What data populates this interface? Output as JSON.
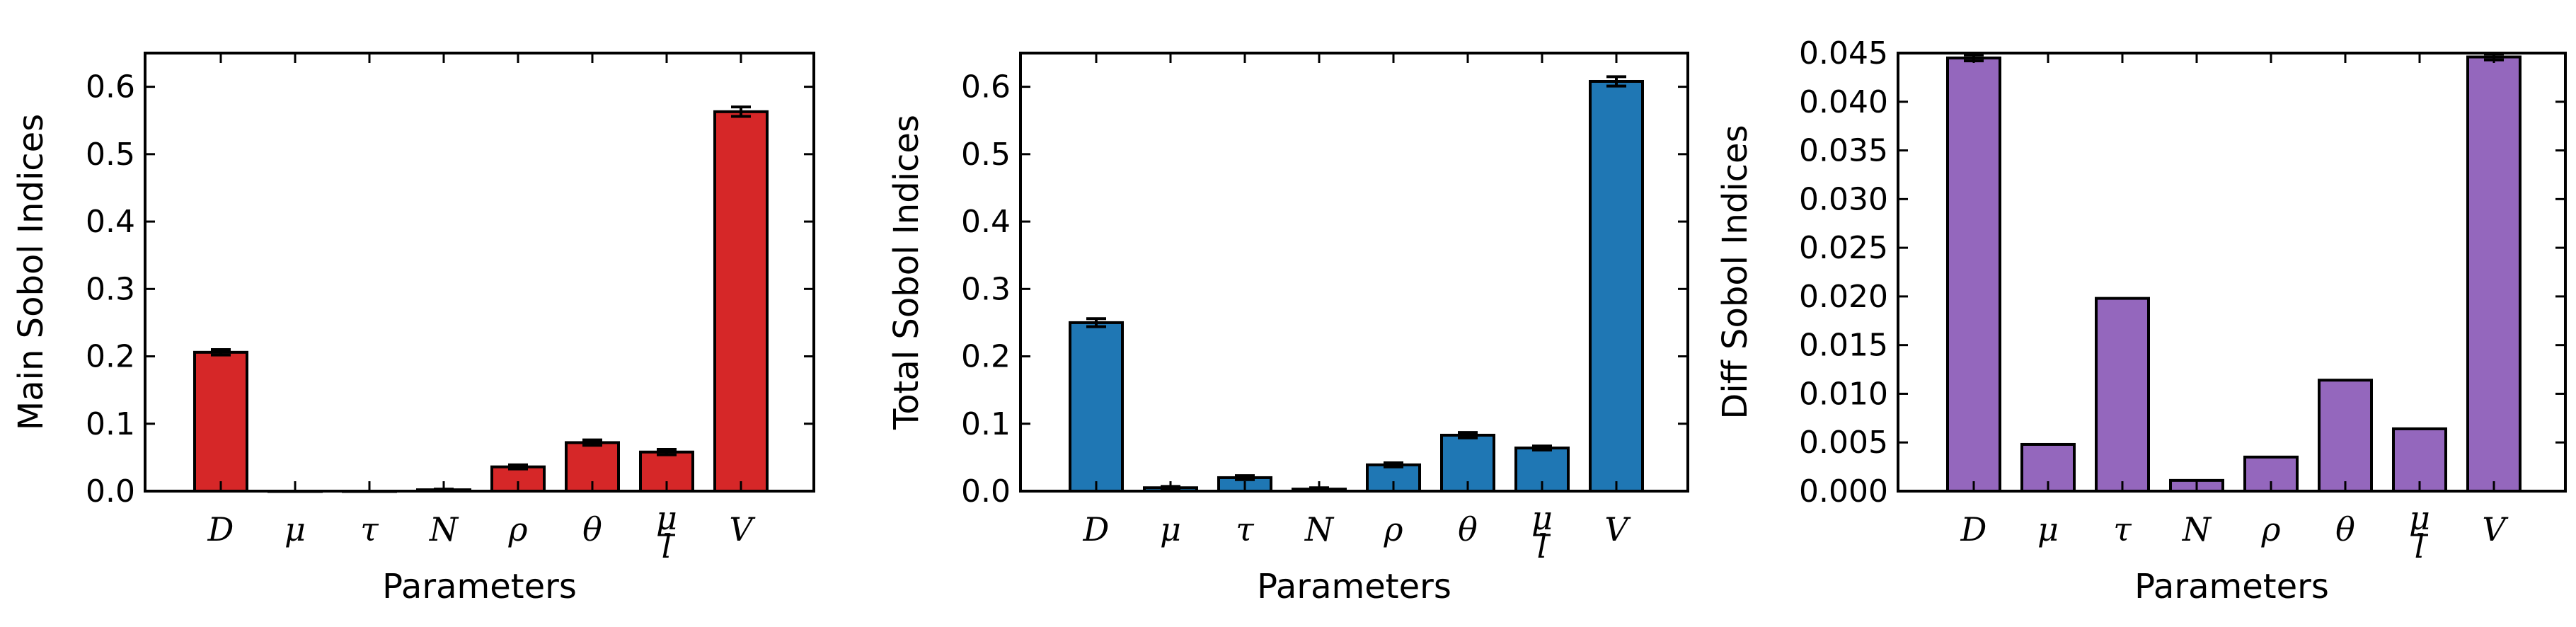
{
  "figure": {
    "panels_count": 3
  },
  "chart_data": [
    {
      "type": "bar",
      "title": "",
      "xlabel": "Parameters",
      "ylabel": "Main Sobol Indices",
      "categories": [
        "D",
        "μ",
        "τ",
        "N",
        "ρ",
        "θ",
        "μ/l",
        "V"
      ],
      "values": [
        0.206,
        0.0,
        0.0,
        0.002,
        0.036,
        0.072,
        0.058,
        0.563
      ],
      "errors": [
        0.004,
        0.0,
        0.0,
        0.001,
        0.003,
        0.004,
        0.004,
        0.007
      ],
      "ylim": [
        0,
        0.65
      ],
      "yticks": [
        "0.0",
        "0.1",
        "0.2",
        "0.3",
        "0.4",
        "0.5",
        "0.6"
      ],
      "ytick_values": [
        0,
        0.1,
        0.2,
        0.3,
        0.4,
        0.5,
        0.6
      ],
      "color": "#d62728",
      "grid": false,
      "legend": "none"
    },
    {
      "type": "bar",
      "title": "",
      "xlabel": "Parameters",
      "ylabel": "Total Sobol Indices",
      "categories": [
        "D",
        "μ",
        "τ",
        "N",
        "ρ",
        "θ",
        "μ/l",
        "V"
      ],
      "values": [
        0.25,
        0.005,
        0.02,
        0.003,
        0.039,
        0.083,
        0.064,
        0.608
      ],
      "errors": [
        0.006,
        0.002,
        0.003,
        0.002,
        0.003,
        0.004,
        0.003,
        0.007
      ],
      "ylim": [
        0,
        0.65
      ],
      "yticks": [
        "0.0",
        "0.1",
        "0.2",
        "0.3",
        "0.4",
        "0.5",
        "0.6"
      ],
      "ytick_values": [
        0,
        0.1,
        0.2,
        0.3,
        0.4,
        0.5,
        0.6
      ],
      "color": "#1f77b4",
      "grid": false,
      "legend": "none"
    },
    {
      "type": "bar",
      "title": "",
      "xlabel": "Parameters",
      "ylabel": "Diff Sobol Indices",
      "categories": [
        "D",
        "μ",
        "τ",
        "N",
        "ρ",
        "θ",
        "μ/l",
        "V"
      ],
      "values": [
        0.0445,
        0.0048,
        0.0198,
        0.0011,
        0.0035,
        0.0114,
        0.0064,
        0.0446
      ],
      "errors": [
        0.0003,
        0.0,
        0.0,
        0.0,
        0.0,
        0.0,
        0.0,
        0.0003
      ],
      "ylim": [
        0,
        0.045
      ],
      "yticks": [
        "0.000",
        "0.005",
        "0.010",
        "0.015",
        "0.020",
        "0.025",
        "0.030",
        "0.035",
        "0.040",
        "0.045"
      ],
      "ytick_values": [
        0,
        0.005,
        0.01,
        0.015,
        0.02,
        0.025,
        0.03,
        0.035,
        0.04,
        0.045
      ],
      "color": "#9467bd",
      "grid": false,
      "legend": "none"
    }
  ]
}
